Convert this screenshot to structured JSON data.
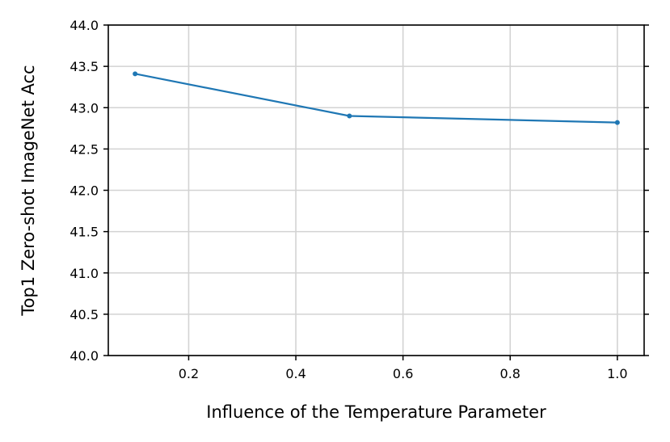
{
  "chart_data": {
    "type": "line",
    "xlabel": "Influence of the Temperature Parameter",
    "ylabel": "Top1 Zero-shot ImageNet Acc",
    "xlim": [
      0.05,
      1.05
    ],
    "ylim": [
      40.0,
      44.0
    ],
    "x_ticks": [
      0.2,
      0.4,
      0.6,
      0.8,
      1.0
    ],
    "x_tick_labels": [
      "0.2",
      "0.4",
      "0.6",
      "0.8",
      "1.0"
    ],
    "y_ticks": [
      40.0,
      40.5,
      41.0,
      41.5,
      42.0,
      42.5,
      43.0,
      43.5,
      44.0
    ],
    "y_tick_labels": [
      "40.0",
      "40.5",
      "41.0",
      "41.5",
      "42.0",
      "42.5",
      "43.0",
      "43.5",
      "44.0"
    ],
    "grid": true,
    "ticks_on_right": true,
    "series": [
      {
        "color": "#1f77b4",
        "x": [
          0.1,
          0.5,
          1.0
        ],
        "y": [
          43.41,
          42.9,
          42.82
        ]
      }
    ]
  }
}
